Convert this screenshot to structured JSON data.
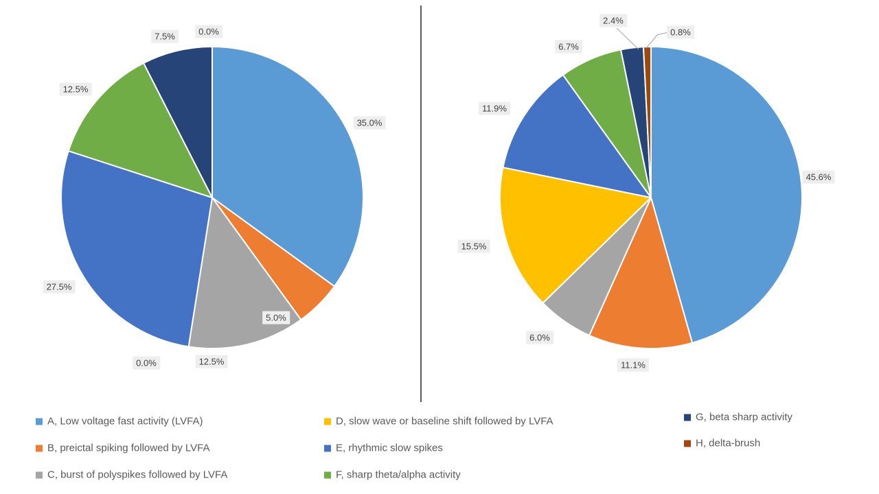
{
  "figure": {
    "background": "#ffffff",
    "divider_color": "#595959",
    "label_box_bg": "#eeeeee",
    "label_text_color": "#404040",
    "legend_text_color": "#595959"
  },
  "legend": {
    "items": [
      {
        "key": "A",
        "label": "A, Low voltage fast activity (LVFA)",
        "color": "#5B9BD5"
      },
      {
        "key": "B",
        "label": "B, preictal spiking followed by LVFA",
        "color": "#ED7D31"
      },
      {
        "key": "C",
        "label": "C, burst of polyspikes followed by LVFA",
        "color": "#A5A5A5"
      },
      {
        "key": "D",
        "label": "D, slow wave or baseline shift followed by LVFA",
        "color": "#FFC000"
      },
      {
        "key": "E",
        "label": "E, rhythmic slow spikes",
        "color": "#4472C4"
      },
      {
        "key": "F",
        "label": "F, sharp theta/alpha activity",
        "color": "#70AD47"
      },
      {
        "key": "G",
        "label": "G, beta sharp activity",
        "color": "#264478"
      },
      {
        "key": "H",
        "label": "H, delta-brush",
        "color": "#9E480E"
      }
    ]
  },
  "chart_data": [
    {
      "type": "pie",
      "id": "left-pie",
      "title": "",
      "categories": [
        "A, Low voltage fast activity (LVFA)",
        "B, preictal spiking followed by LVFA",
        "C, burst of polyspikes followed by LVFA",
        "D, slow wave or baseline shift followed by LVFA",
        "E, rhythmic slow spikes",
        "F, sharp theta/alpha activity",
        "G, beta sharp activity",
        "H, delta-brush"
      ],
      "values": [
        35.0,
        5.0,
        12.5,
        0.0,
        27.5,
        12.5,
        7.5,
        0.0
      ],
      "data_labels": [
        "35.0%",
        "5.0%",
        "12.5%",
        "0.0%",
        "27.5%",
        "12.5%",
        "7.5%",
        "0.0%"
      ],
      "colors": [
        "#5B9BD5",
        "#ED7D31",
        "#A5A5A5",
        "#FFC000",
        "#4472C4",
        "#70AD47",
        "#264478",
        "#9E480E"
      ],
      "start_angle_deg": 0,
      "direction": "clockwise",
      "legend_position": "bottom"
    },
    {
      "type": "pie",
      "id": "right-pie",
      "title": "",
      "categories": [
        "A, Low voltage fast activity (LVFA)",
        "B, preictal spiking followed by LVFA",
        "C, burst of polyspikes followed by LVFA",
        "D, slow wave or baseline shift followed by LVFA",
        "E, rhythmic slow spikes",
        "F, sharp theta/alpha activity",
        "G, beta sharp activity",
        "H, delta-brush"
      ],
      "values": [
        45.6,
        11.1,
        6.0,
        15.5,
        11.9,
        6.7,
        2.4,
        0.8
      ],
      "data_labels": [
        "45.6%",
        "11.1%",
        "6.0%",
        "15.5%",
        "11.9%",
        "6.7%",
        "2.4%",
        "0.8%"
      ],
      "colors": [
        "#5B9BD5",
        "#ED7D31",
        "#A5A5A5",
        "#FFC000",
        "#4472C4",
        "#70AD47",
        "#264478",
        "#9E480E"
      ],
      "start_angle_deg": 0,
      "direction": "clockwise",
      "legend_position": "bottom"
    }
  ]
}
